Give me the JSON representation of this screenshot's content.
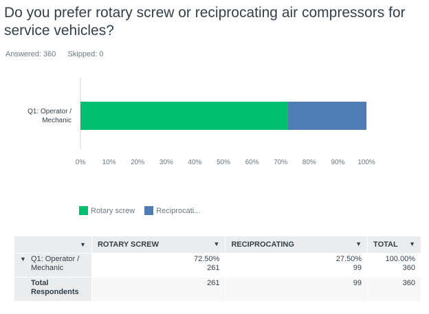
{
  "question": {
    "title": "Do you prefer rotary screw or reciprocating air compressors for service vehicles?",
    "answered": "Answered: 360",
    "skipped": "Skipped: 0"
  },
  "legend": {
    "items": [
      {
        "label": "Rotary screw",
        "color": "#00bf6f"
      },
      {
        "label": "Reciprocati...",
        "color": "#507cb6"
      }
    ]
  },
  "chart_data": {
    "type": "bar",
    "orientation": "horizontal",
    "stacked": true,
    "categories": [
      "Q1: Operator / Mechanic"
    ],
    "series": [
      {
        "name": "Rotary screw",
        "values": [
          72.5
        ],
        "color": "#00bf6f"
      },
      {
        "name": "Reciprocating",
        "values": [
          27.5
        ],
        "color": "#507cb6"
      }
    ],
    "xlim": [
      0,
      100
    ],
    "xticks": [
      "0%",
      "10%",
      "20%",
      "30%",
      "40%",
      "50%",
      "60%",
      "70%",
      "80%",
      "90%",
      "100%"
    ],
    "grid": false,
    "legend_position": "bottom"
  },
  "table": {
    "headers": [
      "",
      "ROTARY SCREW",
      "RECIPROCATING",
      "TOTAL"
    ],
    "rows": [
      {
        "label": "Q1: Operator / Mechanic",
        "cells": [
          {
            "pct": "72.50%",
            "count": "261"
          },
          {
            "pct": "27.50%",
            "count": "99"
          },
          {
            "pct": "100.00%",
            "count": "360"
          }
        ]
      }
    ],
    "total": {
      "label": "Total Respondents",
      "cells": [
        "261",
        "99",
        "360"
      ]
    }
  }
}
